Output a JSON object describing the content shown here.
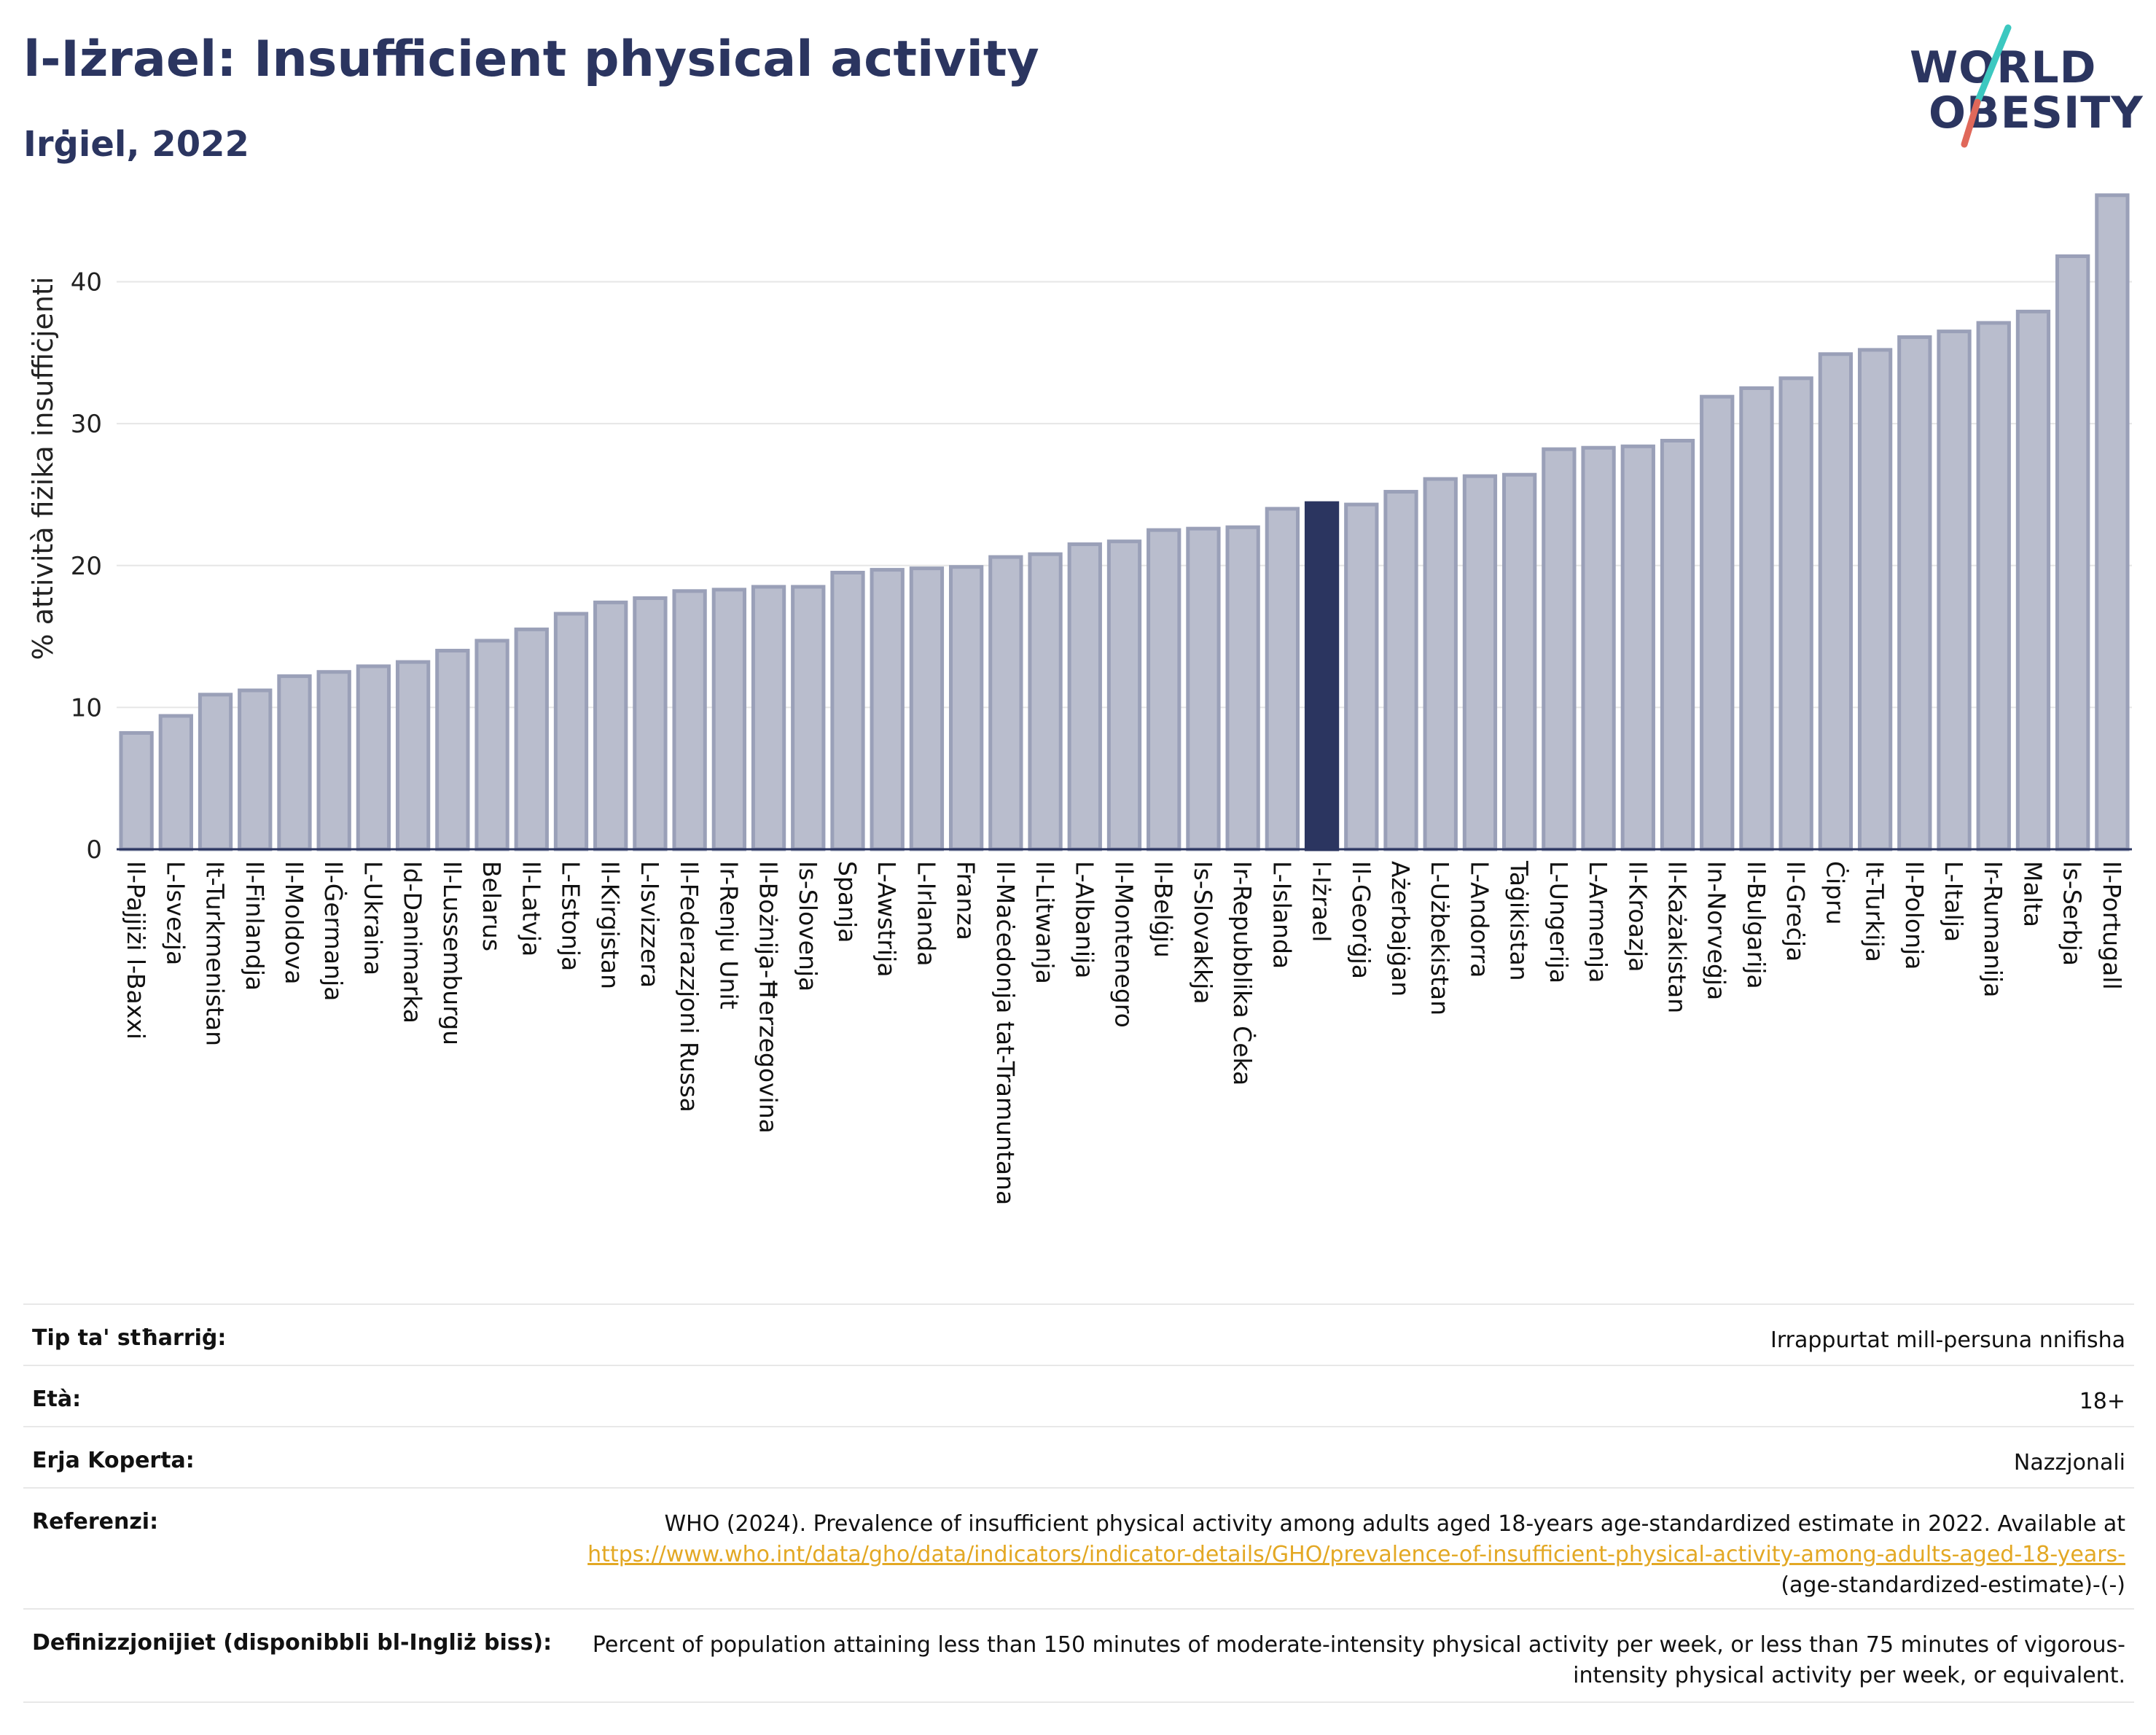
{
  "header": {
    "title": "l-Iżrael: Insufficient physical activity",
    "subtitle": "Irġiel, 2022"
  },
  "logo": {
    "line1": "WORLD",
    "line2": "OBESITY",
    "colors": {
      "text": "#2b3560",
      "slash_teal": "#3cc8c0",
      "slash_red": "#e0685a"
    }
  },
  "chart_data": {
    "type": "bar",
    "title": "",
    "xlabel": "",
    "ylabel": "% attività fiżika insuffiċjenti",
    "ylim": [
      0,
      46.5
    ],
    "yticks": [
      0,
      10,
      20,
      30,
      40
    ],
    "grid": true,
    "highlight_category": "l-Iżrael",
    "colors": {
      "bar": "#b9bdcd",
      "bar_edge": "#9aa0b8",
      "highlight": "#2b3560"
    },
    "categories": [
      "Il-Pajjiżi l-Baxxi",
      "L-Isvezja",
      "It-Turkmenistan",
      "Il-Finlandja",
      "Il-Moldova",
      "Il-Ġermanja",
      "L-Ukraina",
      "Id-Danimarka",
      "Il-Lussemburgu",
      "Belarus",
      "Il-Latvja",
      "L-Estonja",
      "Il-Kirgistan",
      "L-Isvizzera",
      "Il-Federazzjoni Russa",
      "Ir-Renju Unit",
      "Il-Bożnija-Ħerzegovina",
      "Is-Slovenja",
      "Spanja",
      "L-Awstrija",
      "L-Irlanda",
      "Franza",
      "Il-Maċedonja tat-Tramuntana",
      "Il-Litwanja",
      "L-Albanija",
      "Il-Montenegro",
      "Il-Belġju",
      "Is-Slovakkja",
      "Ir-Repubblika Ċeka",
      "L-Islanda",
      "l-Iżrael",
      "Il-Georġja",
      "Ażerbajġan",
      "L-Użbekistan",
      "L-Andorra",
      "Taġikistan",
      "L-Ungerija",
      "L-Armenja",
      "Il-Kroazja",
      "Il-Każakistan",
      "In-Norveġja",
      "Il-Bulgarija",
      "Il-Greċja",
      "Ċipru",
      "It-Turkija",
      "Il-Polonja",
      "L-Italja",
      "Ir-Rumanija",
      "Malta",
      "Is-Serbja",
      "Il-Portugall"
    ],
    "values": [
      8.2,
      9.4,
      10.9,
      11.2,
      12.2,
      12.5,
      12.9,
      13.2,
      14.0,
      14.7,
      15.5,
      16.6,
      17.4,
      17.7,
      18.2,
      18.3,
      18.5,
      18.5,
      19.5,
      19.7,
      19.8,
      19.9,
      20.6,
      20.8,
      21.5,
      21.7,
      22.5,
      22.6,
      22.7,
      24.0,
      24.4,
      24.3,
      25.2,
      26.1,
      26.3,
      26.4,
      28.2,
      28.3,
      28.4,
      28.8,
      31.9,
      32.5,
      33.2,
      34.9,
      35.2,
      36.1,
      36.5,
      37.1,
      37.9,
      41.8,
      46.1
    ]
  },
  "meta": {
    "rows": [
      {
        "label": "Tip ta' stħarriġ:",
        "value": "Irrappurtat mill-persuna nnifisha"
      },
      {
        "label": "Età:",
        "value": "18+"
      },
      {
        "label": "Erja Koperta:",
        "value": "Nazzjonali"
      }
    ],
    "reference": {
      "label": "Referenzi:",
      "text_before": "WHO (2024). Prevalence of insufficient physical activity among adults aged 18-years age-standardized estimate in 2022. Available at",
      "link": "https://www.who.int/data/gho/data/indicators/indicator-details/GHO/prevalence-of-insufficient-physical-activity-among-adults-aged-18-years-",
      "text_after": "(age-standardized-estimate)-(-)"
    },
    "definition": {
      "label": "Definizzjonijiet (disponibbli bl-Ingliż biss):",
      "value": "Percent of population attaining less than 150 minutes of moderate-intensity physical activity per week, or less than 75 minutes of vigorous-intensity physical activity per week, or equivalent."
    }
  }
}
